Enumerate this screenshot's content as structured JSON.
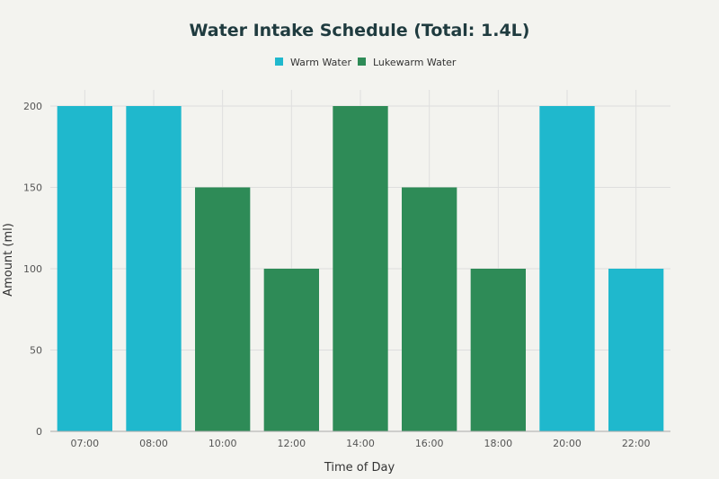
{
  "chart_data": {
    "type": "bar",
    "title": "Water Intake Schedule (Total: 1.4L)",
    "xlabel": "Time of Day",
    "ylabel": "Amount (ml)",
    "ylim": [
      0,
      200
    ],
    "yticks": [
      0,
      50,
      100,
      150,
      200
    ],
    "grid": true,
    "legend_position": "top-center",
    "categories": [
      "07:00",
      "08:00",
      "10:00",
      "12:00",
      "14:00",
      "16:00",
      "18:00",
      "20:00",
      "22:00"
    ],
    "values": [
      200,
      200,
      150,
      100,
      200,
      150,
      100,
      200,
      100
    ],
    "bar_series": [
      "Warm Water",
      "Warm Water",
      "Lukewarm Water",
      "Lukewarm Water",
      "Lukewarm Water",
      "Lukewarm Water",
      "Lukewarm Water",
      "Warm Water",
      "Warm Water"
    ],
    "series": [
      {
        "name": "Warm Water",
        "color": "#1fb8cd"
      },
      {
        "name": "Lukewarm Water",
        "color": "#2e8b57"
      }
    ]
  }
}
